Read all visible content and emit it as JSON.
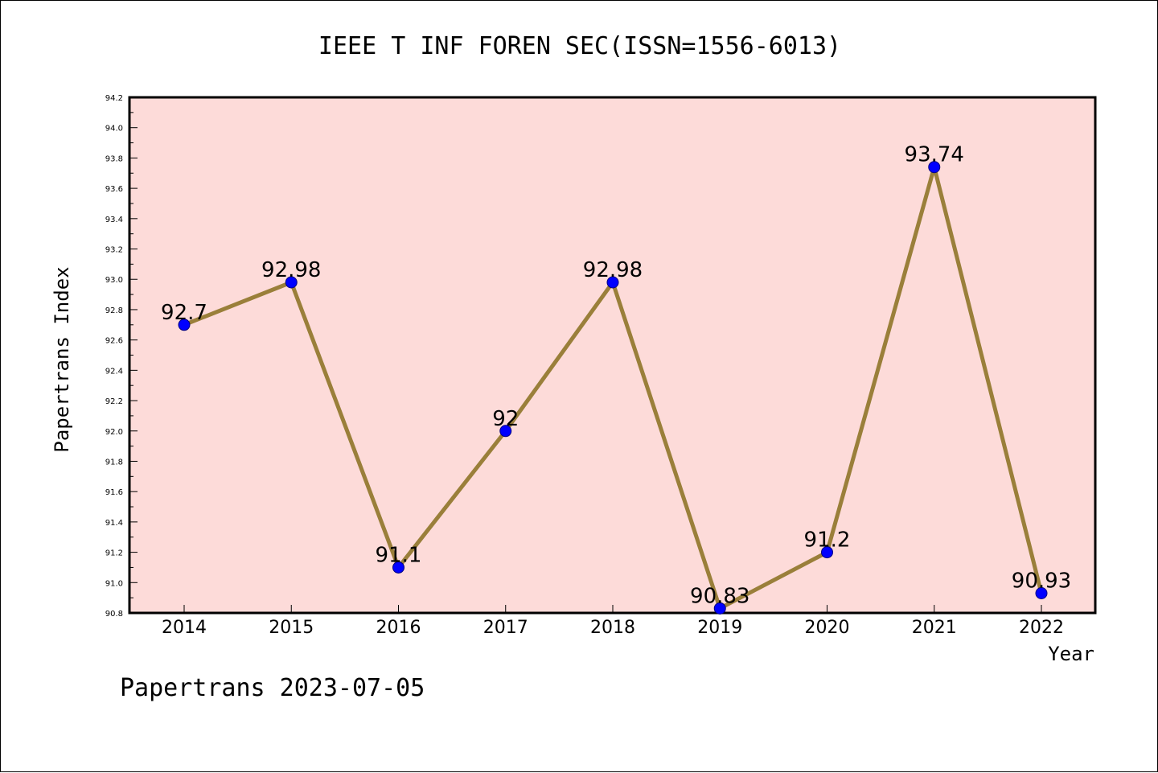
{
  "chart_data": {
    "type": "line",
    "title": "IEEE T INF FOREN SEC(ISSN=1556-6013)",
    "xlabel": "Year",
    "ylabel": "Papertrans Index",
    "categories": [
      "2014",
      "2015",
      "2016",
      "2017",
      "2018",
      "2019",
      "2020",
      "2021",
      "2022"
    ],
    "series": [
      {
        "values": [
          92.7,
          92.98,
          91.1,
          92,
          92.98,
          90.83,
          91.2,
          93.74,
          90.93
        ]
      }
    ],
    "data_labels": [
      "92.7",
      "92.98",
      "91.1",
      "92",
      "92.98",
      "90.83",
      "91.2",
      "93.74",
      "90.93"
    ],
    "ylim": [
      90.8,
      94.2
    ],
    "yticks": [
      "90.8",
      "91.0",
      "91.2",
      "91.4",
      "91.6",
      "91.8",
      "92.0",
      "92.2",
      "92.4",
      "92.6",
      "92.8",
      "93.0",
      "93.2",
      "93.4",
      "93.6",
      "93.8",
      "94.0",
      "94.2"
    ],
    "grid": false,
    "legend": "none",
    "colors": {
      "plot_background": "#fddbd9",
      "line": "#9a7f3a",
      "marker_fill": "#0000ff",
      "marker_edge": "#000080"
    }
  },
  "footer": "Papertrans 2023-07-05"
}
